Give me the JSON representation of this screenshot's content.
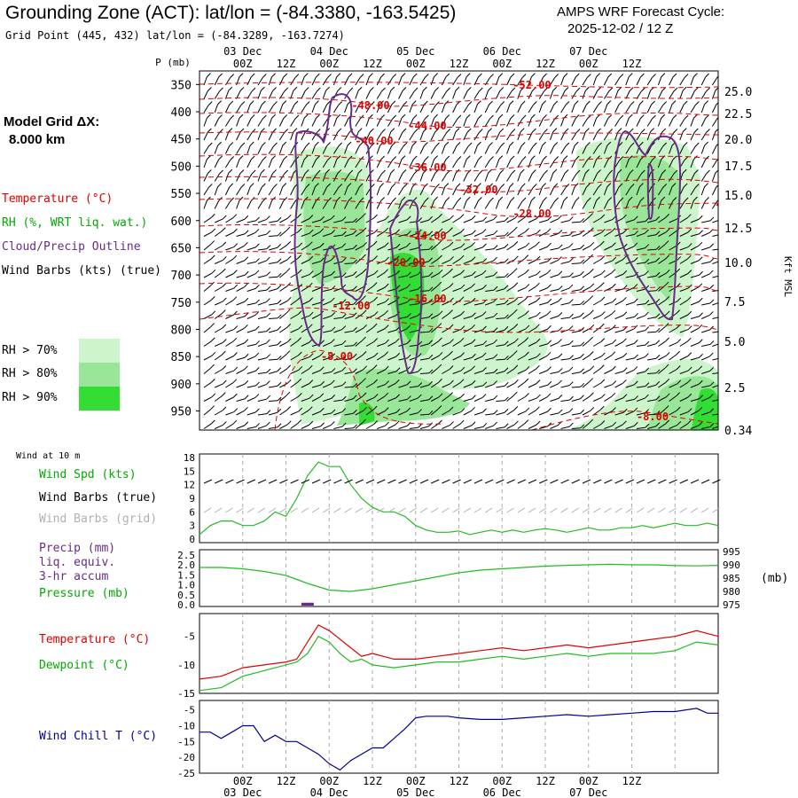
{
  "header": {
    "title": "Grounding Zone (ACT):  lat/lon = (-84.3380, -163.5425)",
    "grid_point": "Grid Point (445, 432) lat/lon = (-84.3289, -163.7274)",
    "cycle_line1": "AMPS WRF Forecast Cycle:",
    "cycle_line2": "2025-12-02 / 12  Z"
  },
  "model_grid": {
    "line1": "Model Grid ΔX:",
    "line2": "8.000 km"
  },
  "legend": {
    "temperature": "Temperature (°C)",
    "rh": "RH (%, WRT liq. wat.)",
    "cloud": "Cloud/Precip Outline",
    "wind_barbs": "Wind Barbs (kts) (true)",
    "rh70": "RH > 70%",
    "rh80": "RH > 80%",
    "rh90": "RH > 90%",
    "colors": {
      "rh70": "#ccf5cc",
      "rh80": "#99e699",
      "rh90": "#33dd33",
      "temp": "#e00000",
      "cloud": "#6a2a8a",
      "wind_green": "#22bb22",
      "wind_chill": "#000090"
    }
  },
  "axes": {
    "p_label": "P (mb)",
    "kft_label": "Kft MSL",
    "wind10m_label": "Wind at 10 m",
    "pressure_unit": "(mb)"
  },
  "time_axis": {
    "hour_labels": [
      "00Z",
      "12Z",
      "00Z",
      "12Z",
      "00Z",
      "12Z",
      "00Z",
      "12Z",
      "00Z",
      "12Z"
    ],
    "day_labels": [
      "03 Dec",
      "04 Dec",
      "05 Dec",
      "06 Dec",
      "07 Dec"
    ]
  },
  "panel_labels": {
    "wind_spd": "Wind Spd (kts)",
    "wind_barbs_true": "Wind Barbs (true)",
    "wind_barbs_grid": "Wind Barbs (grid)",
    "precip1": "Precip (mm)",
    "precip2": "liq. equiv.",
    "precip3": "3-hr accum",
    "pressure": "Pressure (mb)",
    "temperature": "Temperature (°C)",
    "dewpoint": "Dewpoint (°C)",
    "wind_chill": "Wind Chill T (°C)"
  },
  "chart_data": [
    {
      "type": "contour",
      "name": "cross-section",
      "y_pressure_ticks": [
        350,
        400,
        450,
        500,
        550,
        600,
        650,
        700,
        750,
        800,
        850,
        900,
        950
      ],
      "y_height_ticks": [
        "25.0",
        "22.5",
        "20.0",
        "17.5",
        "15.0",
        "12.5",
        "10.0",
        "7.5",
        "5.0",
        "2.5",
        "0.34"
      ],
      "temperature_contour_labels": [
        "-52.00",
        "-48.00",
        "-44.00",
        "-40.00",
        "-36.00",
        "-32.00",
        "-28.00",
        "-24.00",
        "-20.00",
        "-16.00",
        "-12.00",
        "-8.00",
        "-8.00"
      ]
    },
    {
      "type": "line",
      "name": "wind speed at 10 m",
      "yticks": [
        0,
        3,
        6,
        9,
        12,
        15,
        18
      ],
      "ylim": [
        0,
        18
      ],
      "x_hours": [
        0,
        3,
        6,
        9,
        12,
        15,
        18,
        21,
        24,
        27,
        30,
        33,
        36,
        39,
        42,
        45,
        48,
        51,
        54,
        57,
        60,
        63,
        66,
        69,
        72,
        75,
        78,
        81,
        84,
        87,
        90,
        93,
        96,
        99,
        102,
        105,
        108,
        111,
        114,
        117,
        120,
        123,
        126,
        129,
        132,
        135,
        138,
        141,
        144
      ],
      "values": [
        1,
        3,
        4,
        4,
        3,
        3,
        4,
        6,
        5,
        9,
        14,
        17,
        16,
        16,
        12,
        9,
        7,
        6,
        6,
        5,
        3,
        2,
        1.5,
        1.5,
        1.8,
        1,
        1.5,
        2,
        1.5,
        2,
        1.5,
        2,
        2.3,
        2,
        1.5,
        2,
        2.5,
        2,
        2,
        2.5,
        2.5,
        3,
        2.5,
        3,
        3.5,
        3,
        3,
        3.5,
        3
      ]
    },
    {
      "type": "line",
      "name": "pressure",
      "yticks_left": [
        "0.0",
        "0.5",
        "1.0",
        "1.5",
        "2.0",
        "2.5"
      ],
      "yticks_right": [
        975,
        980,
        985,
        990,
        995
      ],
      "ylim": [
        975,
        995
      ],
      "x_hours": [
        0,
        6,
        12,
        18,
        24,
        30,
        36,
        42,
        48,
        54,
        60,
        66,
        72,
        78,
        84,
        90,
        96,
        102,
        108,
        114,
        120,
        126,
        132,
        138,
        144
      ],
      "values": [
        989,
        989,
        988.5,
        987.5,
        986,
        983,
        980.5,
        980,
        981,
        982.5,
        984,
        985.5,
        987,
        988,
        988.5,
        989,
        989.5,
        989.8,
        990,
        990.2,
        990,
        990,
        989.7,
        989.6,
        989.8
      ],
      "precip_bar": {
        "x_hours": 30,
        "value": 0.1
      }
    },
    {
      "type": "line",
      "name": "temperature and dewpoint",
      "yticks": [
        -15,
        -10,
        -5
      ],
      "ylim": [
        -15,
        -1
      ],
      "x_hours": [
        0,
        6,
        12,
        18,
        24,
        27,
        30,
        33,
        36,
        39,
        42,
        45,
        48,
        54,
        60,
        66,
        72,
        78,
        84,
        90,
        96,
        102,
        108,
        114,
        120,
        126,
        132,
        138,
        144
      ],
      "series": [
        {
          "name": "Temperature",
          "values": [
            -12.5,
            -12,
            -10.5,
            -10,
            -9.5,
            -9,
            -6,
            -3,
            -4,
            -5.5,
            -7,
            -8.5,
            -8,
            -9,
            -9,
            -8.5,
            -8,
            -7.5,
            -7,
            -7.5,
            -7,
            -6.5,
            -7,
            -6.5,
            -6,
            -5.5,
            -5,
            -4,
            -5
          ]
        },
        {
          "name": "Dewpoint",
          "values": [
            -14.5,
            -14,
            -12,
            -11,
            -10,
            -9.5,
            -8,
            -5,
            -6,
            -8,
            -9.5,
            -9,
            -10,
            -10.5,
            -10,
            -9.5,
            -9.5,
            -9,
            -8.5,
            -9,
            -8.5,
            -8,
            -8.5,
            -8,
            -8,
            -8,
            -7.5,
            -6,
            -6.5
          ]
        }
      ]
    },
    {
      "type": "line",
      "name": "wind chill",
      "yticks": [
        -25,
        -20,
        -15,
        -10,
        -5
      ],
      "ylim": [
        -25,
        -2
      ],
      "x_hours": [
        0,
        3,
        6,
        9,
        12,
        15,
        18,
        21,
        24,
        27,
        30,
        33,
        36,
        39,
        42,
        45,
        48,
        51,
        54,
        57,
        60,
        63,
        66,
        69,
        72,
        78,
        84,
        90,
        96,
        102,
        108,
        114,
        120,
        126,
        132,
        138,
        141,
        144
      ],
      "values": [
        -12,
        -12,
        -14,
        -12,
        -10,
        -10,
        -15,
        -13,
        -15,
        -15,
        -17,
        -19,
        -22,
        -24,
        -21,
        -19,
        -17,
        -17,
        -14,
        -11,
        -7.5,
        -7,
        -7,
        -7,
        -7.5,
        -8,
        -8,
        -7.5,
        -7,
        -6.5,
        -7,
        -6.5,
        -6,
        -5.5,
        -5.5,
        -4.5,
        -6,
        -6
      ]
    }
  ]
}
